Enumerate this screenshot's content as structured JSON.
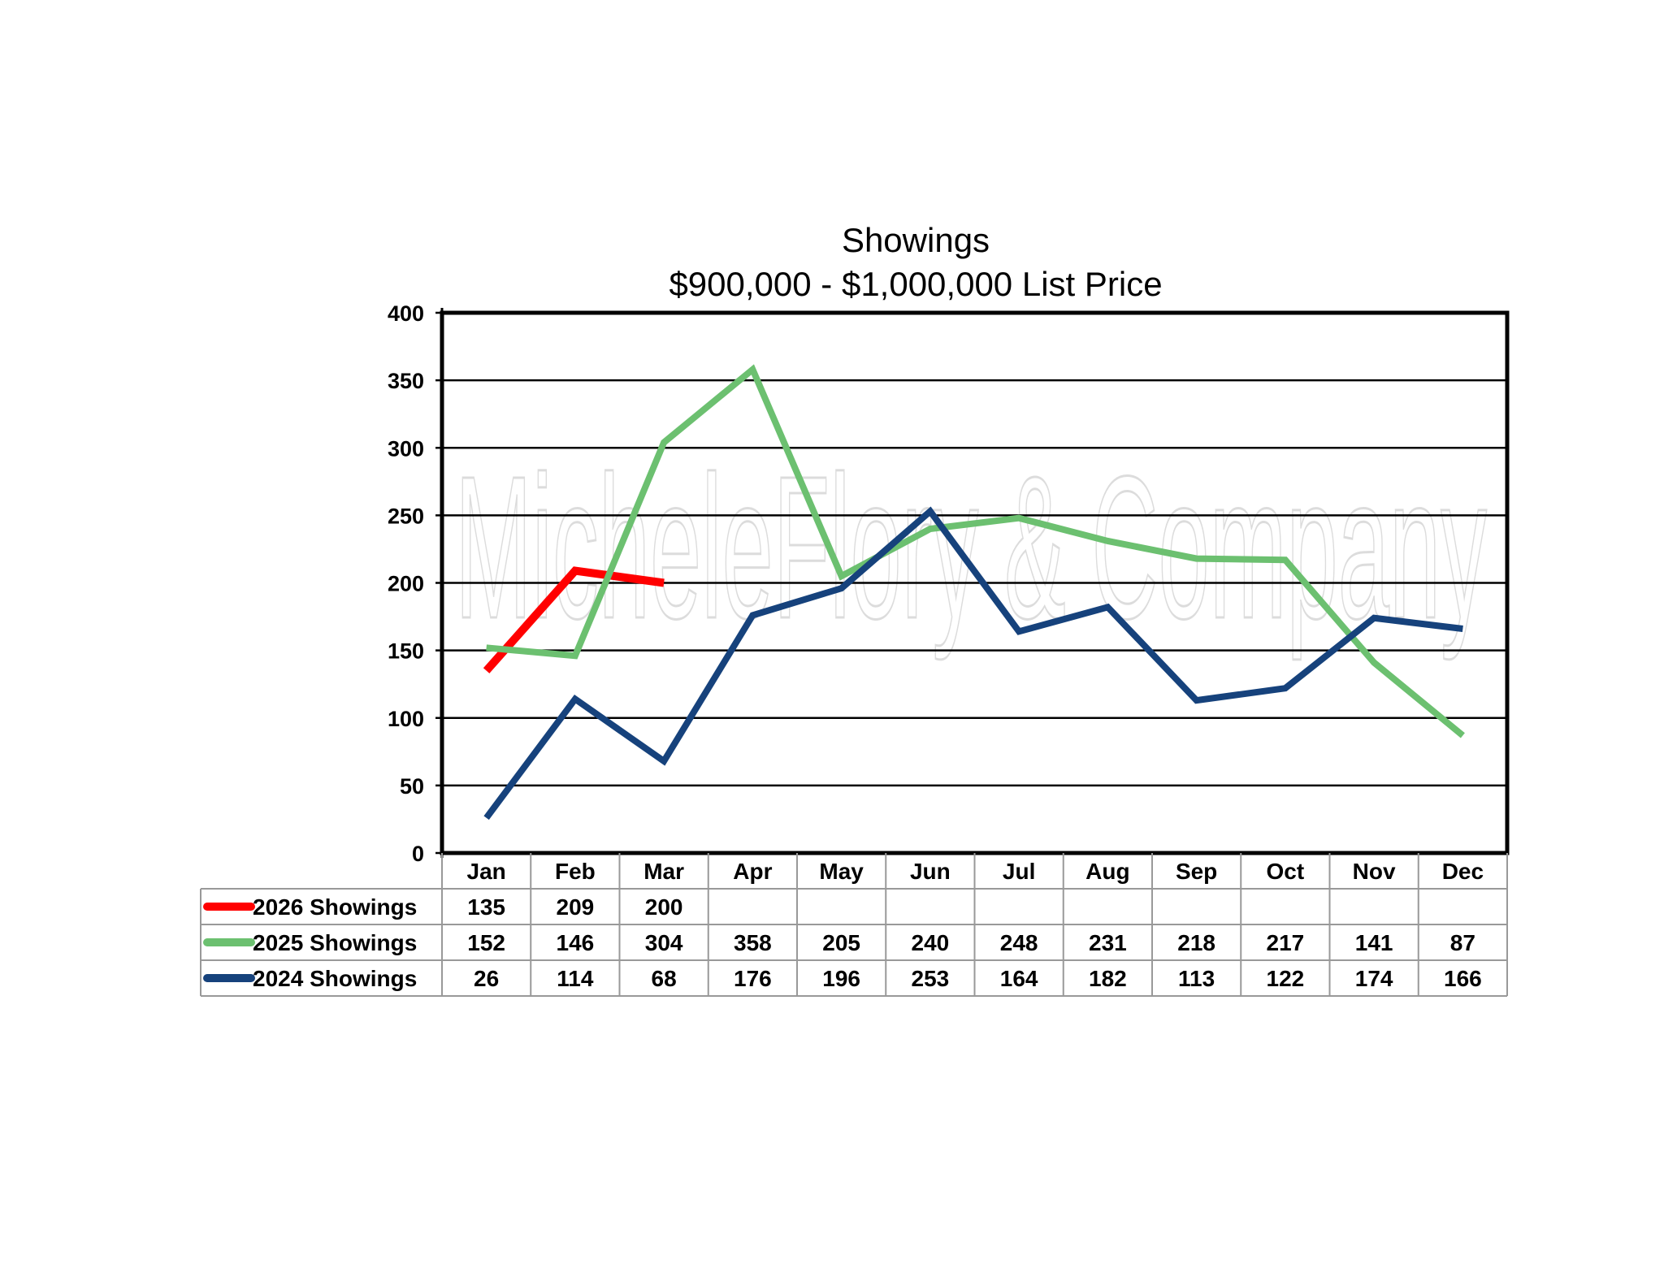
{
  "chart_data": {
    "type": "line",
    "title": "Showings",
    "subtitle": "$900,000 - $1,000,000 List Price",
    "xlabel": "",
    "ylabel": "",
    "ylim": [
      0,
      400
    ],
    "yticks": [
      0,
      50,
      100,
      150,
      200,
      250,
      300,
      350,
      400
    ],
    "grid": true,
    "legend": "data-table-left",
    "categories": [
      "Jan",
      "Feb",
      "Mar",
      "Apr",
      "May",
      "Jun",
      "Jul",
      "Aug",
      "Sep",
      "Oct",
      "Nov",
      "Dec"
    ],
    "series": [
      {
        "name": "2026 Showings",
        "color": "#ff0000",
        "values": [
          135,
          209,
          200,
          null,
          null,
          null,
          null,
          null,
          null,
          null,
          null,
          null
        ]
      },
      {
        "name": "2025 Showings",
        "color": "#6cc070",
        "values": [
          152,
          146,
          304,
          358,
          205,
          240,
          248,
          231,
          218,
          217,
          141,
          87
        ]
      },
      {
        "name": "2024 Showings",
        "color": "#16427c",
        "values": [
          26,
          114,
          68,
          176,
          196,
          253,
          164,
          182,
          113,
          122,
          174,
          166
        ]
      }
    ],
    "watermark": "MicheleFlory & Company"
  }
}
